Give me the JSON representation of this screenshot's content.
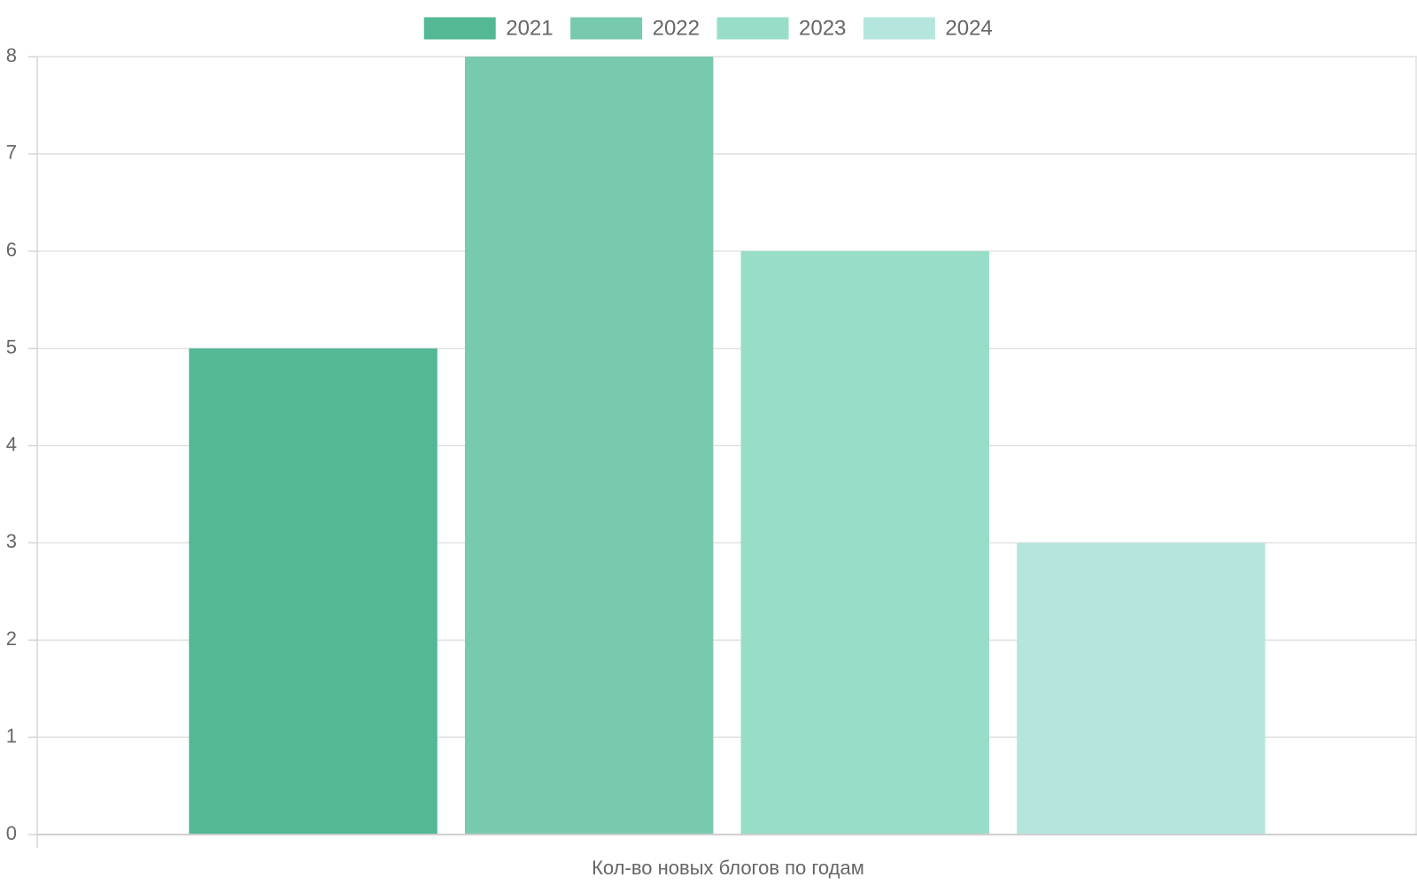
{
  "chart_data": {
    "type": "bar",
    "title": "",
    "xlabel": "Кол-во новых блогов по годам",
    "ylabel": "",
    "ylim": [
      0,
      8
    ],
    "yticks": [
      0,
      1,
      2,
      3,
      4,
      5,
      6,
      7,
      8
    ],
    "grid": true,
    "legend_position": "top",
    "series": [
      {
        "name": "2021",
        "values": [
          5
        ],
        "color": "#54b895"
      },
      {
        "name": "2022",
        "values": [
          8
        ],
        "color": "#78caae"
      },
      {
        "name": "2023",
        "values": [
          6
        ],
        "color": "#97ddc7"
      },
      {
        "name": "2024",
        "values": [
          3
        ],
        "color": "#b5e6de"
      }
    ]
  }
}
